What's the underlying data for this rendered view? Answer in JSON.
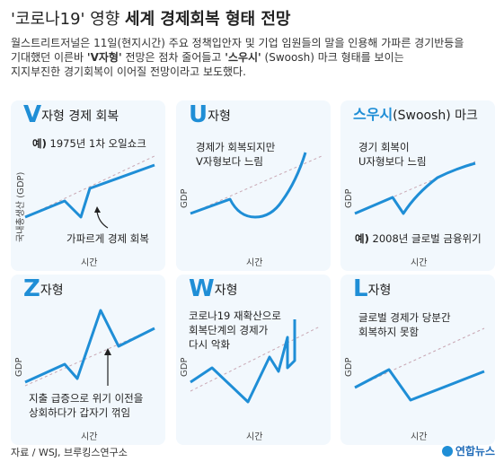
{
  "header": {
    "title_plain": "'코로나19' 영향 ",
    "title_bold": "세계 경제회복 형태 전망",
    "desc_line1": "월스트리트저널은 11일(현지시간) 주요 정책입안자 및 기업 임원들의 말을 인용해 가파른 경기반등을",
    "desc_line2a": "기대했던 이른바 ",
    "desc_v": "'V자형'",
    "desc_line2b": " 전망은 점차 줄어들고 ",
    "desc_s": "'스우시'",
    "desc_line2c": " (Swoosh) 마크 형태를 보이는",
    "desc_line3": "지지부진한 경기회복이 이어질 전망이라고 보도했다."
  },
  "panels": [
    {
      "letter": "V",
      "head_rest": "자형 경제 회복",
      "note_pre": "예)",
      "note": " 1975년 1차 오일쇼크",
      "callout": "가파르게 경제 회복",
      "ylabel": "국내총생산 (GDP)",
      "xlabel": "시간"
    },
    {
      "letter": "U",
      "head_rest": "자형",
      "note_line1": "경제가 회복되지만",
      "note_line2": "V자형보다 느림",
      "ylabel": "GDP",
      "xlabel": "시간"
    },
    {
      "head_blue": "스우시",
      "head_rest": "(Swoosh) 마크",
      "note_line1": "경기 회복이",
      "note_line2": "U자형보다 느림",
      "example_pre": "예)",
      "example": " 2008년 글로벌 금융위기",
      "ylabel": "GDP",
      "xlabel": "시간"
    },
    {
      "letter": "Z",
      "head_rest": "자형",
      "note_line1": "지출 급증으로 위기 이전을",
      "note_line2": "상회하다가 갑자기 꺾임",
      "ylabel": "GDP",
      "xlabel": "시간"
    },
    {
      "letter": "W",
      "head_rest": "자형",
      "note_line1": "코로나19 재확산으로",
      "note_line2": "회복단계의 경제가",
      "note_line3": "다시 악화",
      "ylabel": "GDP",
      "xlabel": "시간"
    },
    {
      "letter": "L",
      "head_rest": "자형",
      "note_line1": "글로벌 경제가 당분간",
      "note_line2": "회복하지 못함",
      "ylabel": "GDP",
      "xlabel": "시간"
    }
  ],
  "footer": {
    "source": "자료 / WSJ, 브루킹스연구소",
    "logo": "연합뉴스"
  },
  "colors": {
    "line": "#1f8ed6",
    "panel_bg": "#f2f8fd",
    "trend": "#c9a8b4"
  }
}
